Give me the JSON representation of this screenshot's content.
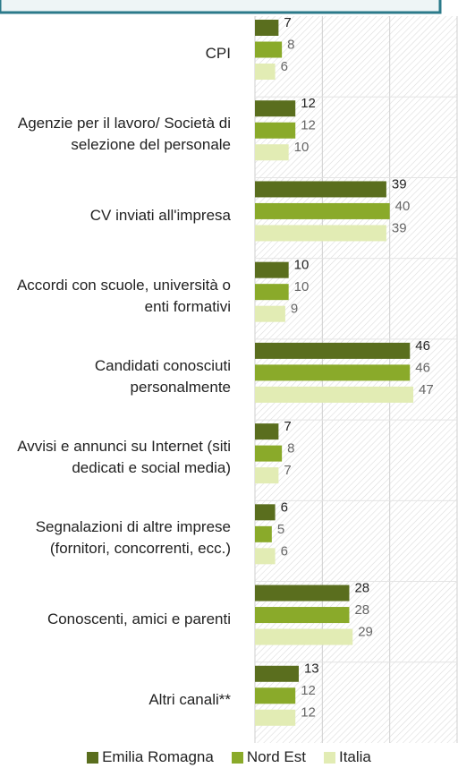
{
  "chart_data": {
    "type": "barh",
    "categories": [
      "CPI",
      "Agenzie per il lavoro/ Società di selezione del personale",
      "CV inviati all'impresa",
      "Accordi con scuole, università o enti formativi",
      "Candidati conosciuti personalmente",
      "Avvisi e annunci su Internet (siti dedicati e social media)",
      "Segnalazioni di altre imprese (fornitori, concorrenti, ecc.)",
      "Conoscenti, amici e parenti",
      "Altri canali**"
    ],
    "series": [
      {
        "name": "Emilia Romagna",
        "color": "#5a6e1e",
        "values": [
          7,
          12,
          39,
          10,
          46,
          7,
          6,
          28,
          13
        ]
      },
      {
        "name": "Nord Est",
        "color": "#8aaa2a",
        "values": [
          8,
          12,
          40,
          10,
          46,
          8,
          5,
          28,
          12
        ]
      },
      {
        "name": "Italia",
        "color": "#e2ecb4",
        "values": [
          6,
          10,
          39,
          9,
          47,
          7,
          6,
          29,
          12
        ]
      }
    ],
    "xlim": [
      0,
      60
    ],
    "xticks": [
      0,
      20,
      40,
      60
    ],
    "grid": true,
    "legend": "bottom"
  }
}
